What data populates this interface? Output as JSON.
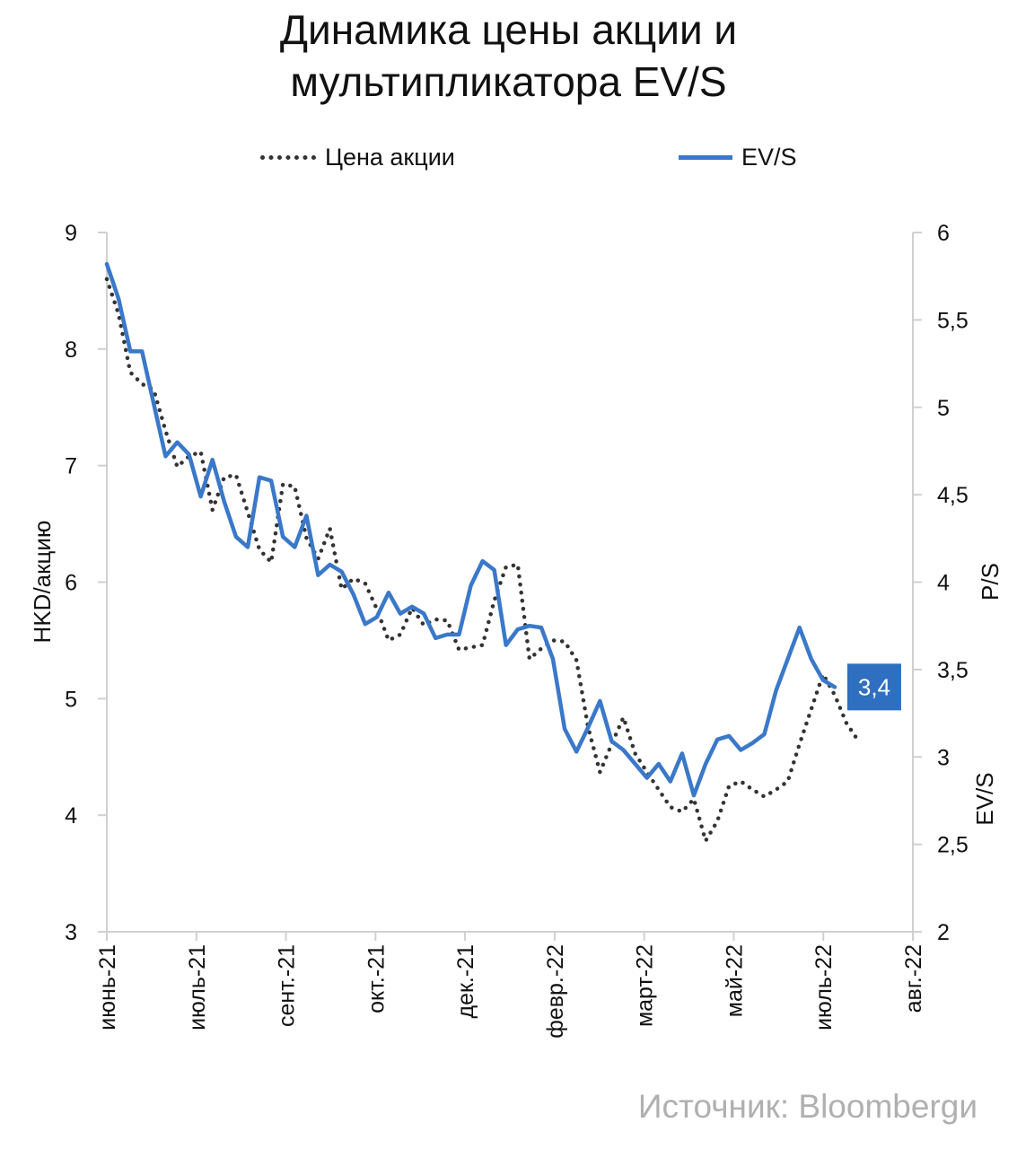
{
  "chart_data": {
    "type": "line",
    "title_lines": [
      "Динамика цены акции и",
      "мультипликатора EV/S"
    ],
    "legend": [
      {
        "name": "Цена акции",
        "style": "dotted",
        "color": "#333333"
      },
      {
        "name": "EV/S",
        "style": "solid",
        "color": "#3a78c9"
      }
    ],
    "x_tick_labels": [
      "июнь-21",
      "июль-21",
      "сент.-21",
      "окт.-21",
      "дек.-21",
      "февр.-22",
      "март-22",
      "май-22",
      "июль-22",
      "авг.-22"
    ],
    "left_axis": {
      "label": "HKD/акцию",
      "ticks": [
        "3",
        "4",
        "5",
        "6",
        "7",
        "8",
        "9"
      ],
      "min": 3,
      "max": 9
    },
    "right_axis": {
      "labels": [
        "P/S",
        "EV/S"
      ],
      "ticks": [
        "2",
        "2,5",
        "3",
        "3,5",
        "4",
        "4,5",
        "5",
        "5,5",
        "6"
      ],
      "min": 2,
      "max": 6
    },
    "series": [
      {
        "name": "Цена акции",
        "axis": "left",
        "values": [
          8.6,
          8.3,
          7.8,
          7.7,
          7.65,
          7.3,
          6.99,
          7.08,
          7.12,
          6.62,
          6.9,
          6.92,
          6.6,
          6.28,
          6.17,
          6.84,
          6.82,
          6.38,
          6.2,
          6.46,
          5.94,
          6.03,
          5.99,
          5.77,
          5.5,
          5.55,
          5.78,
          5.63,
          5.68,
          5.67,
          5.42,
          5.44,
          5.46,
          5.84,
          6.13,
          6.15,
          5.34,
          5.43,
          5.5,
          5.49,
          5.33,
          4.75,
          4.37,
          4.61,
          4.84,
          4.53,
          4.37,
          4.22,
          4.07,
          4.03,
          4.14,
          3.78,
          3.95,
          4.25,
          4.29,
          4.22,
          4.16,
          4.22,
          4.29,
          4.61,
          4.91,
          5.21,
          5.03,
          4.79,
          4.64
        ]
      },
      {
        "name": "EV/S",
        "axis": "right",
        "values": [
          5.82,
          5.62,
          5.32,
          5.32,
          5.02,
          4.72,
          4.8,
          4.73,
          4.49,
          4.7,
          4.46,
          4.26,
          4.2,
          4.6,
          4.58,
          4.26,
          4.2,
          4.38,
          4.04,
          4.1,
          4.06,
          3.93,
          3.76,
          3.8,
          3.94,
          3.82,
          3.86,
          3.82,
          3.68,
          3.7,
          3.7,
          3.98,
          4.12,
          4.07,
          3.64,
          3.73,
          3.75,
          3.74,
          3.56,
          3.16,
          3.03,
          3.17,
          3.32,
          3.09,
          3.04,
          2.96,
          2.88,
          2.96,
          2.86,
          3.02,
          2.78,
          2.96,
          3.1,
          3.12,
          3.04,
          3.08,
          3.13,
          3.38,
          3.56,
          3.74,
          3.56,
          3.44,
          3.4
        ]
      }
    ],
    "end_label": "3,4",
    "source": "Источник: Bloombergи"
  }
}
